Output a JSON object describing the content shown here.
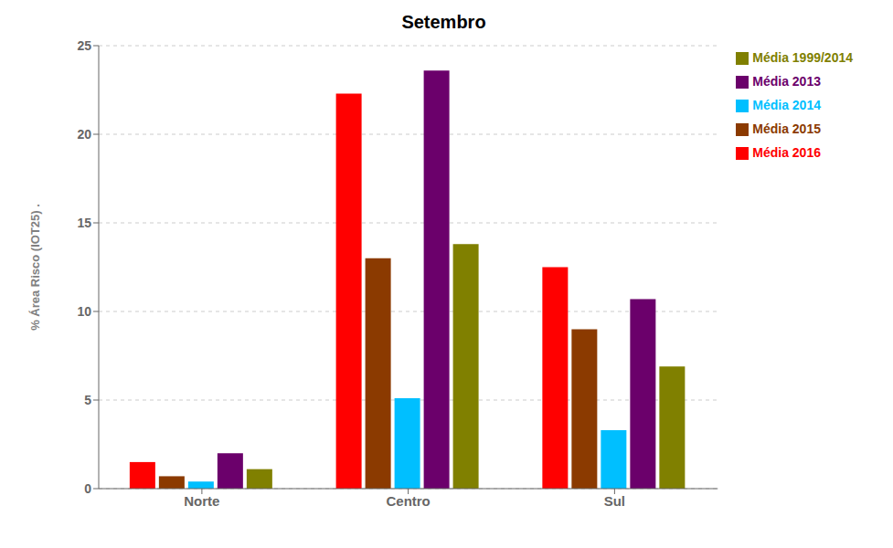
{
  "chart_data": {
    "type": "bar",
    "title": "Setembro",
    "ylabel": "% Área Risco (IOT25)  .",
    "categories": [
      "Norte",
      "Centro",
      "Sul"
    ],
    "series": [
      {
        "name": "Média 2016",
        "color": "#FF0000",
        "values": [
          1.5,
          22.3,
          12.5
        ]
      },
      {
        "name": "Média 2015",
        "color": "#8B3A00",
        "values": [
          0.7,
          13.0,
          9.0
        ]
      },
      {
        "name": "Média 2014",
        "color": "#00BFFF",
        "values": [
          0.4,
          5.1,
          3.3
        ]
      },
      {
        "name": "Média 2013",
        "color": "#6B006B",
        "values": [
          2.0,
          23.6,
          10.7
        ]
      },
      {
        "name": "Média 1999/2014",
        "color": "#808000",
        "values": [
          1.1,
          13.8,
          6.9
        ]
      }
    ],
    "ylim": [
      0,
      25
    ],
    "yticks": [
      0,
      5,
      10,
      15,
      20,
      25
    ],
    "grid": true,
    "legend": "right"
  }
}
